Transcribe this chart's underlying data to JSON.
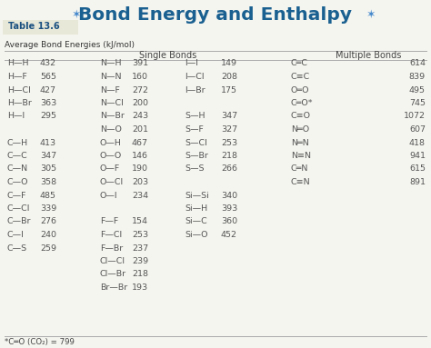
{
  "title": "Bond Energy and Enthalpy",
  "table_label": "Table 13.6",
  "subtitle": "Average Bond Energies (kJ/mol)",
  "single_bonds_header": "Single Bonds",
  "multiple_bonds_header": "Multiple Bonds",
  "footnote": "*C═O (CO₂) = 799",
  "col1": [
    [
      "H—H",
      "432"
    ],
    [
      "H—F",
      "565"
    ],
    [
      "H—Cl",
      "427"
    ],
    [
      "H—Br",
      "363"
    ],
    [
      "H—I",
      "295"
    ],
    [
      "",
      ""
    ],
    [
      "C—H",
      "413"
    ],
    [
      "C—C",
      "347"
    ],
    [
      "C—N",
      "305"
    ],
    [
      "C—O",
      "358"
    ],
    [
      "C—F",
      "485"
    ],
    [
      "C—Cl",
      "339"
    ],
    [
      "C—Br",
      "276"
    ],
    [
      "C—I",
      "240"
    ],
    [
      "C—S",
      "259"
    ]
  ],
  "col2": [
    [
      "N—H",
      "391"
    ],
    [
      "N—N",
      "160"
    ],
    [
      "N—F",
      "272"
    ],
    [
      "N—Cl",
      "200"
    ],
    [
      "N—Br",
      "243"
    ],
    [
      "N—O",
      "201"
    ],
    [
      "O—H",
      "467"
    ],
    [
      "O—O",
      "146"
    ],
    [
      "O—F",
      "190"
    ],
    [
      "O—Cl",
      "203"
    ],
    [
      "O—I",
      "234"
    ],
    [
      "",
      ""
    ],
    [
      "F—F",
      "154"
    ],
    [
      "F—Cl",
      "253"
    ],
    [
      "F—Br",
      "237"
    ],
    [
      "Cl—Cl",
      "239"
    ],
    [
      "Cl—Br",
      "218"
    ],
    [
      "Br—Br",
      "193"
    ]
  ],
  "col3": [
    [
      "I—I",
      "149"
    ],
    [
      "I—Cl",
      "208"
    ],
    [
      "I—Br",
      "175"
    ],
    [
      "",
      ""
    ],
    [
      "S—H",
      "347"
    ],
    [
      "S—F",
      "327"
    ],
    [
      "S—Cl",
      "253"
    ],
    [
      "S—Br",
      "218"
    ],
    [
      "S—S",
      "266"
    ],
    [
      "",
      ""
    ],
    [
      "Si—Si",
      "340"
    ],
    [
      "Si—H",
      "393"
    ],
    [
      "Si—C",
      "360"
    ],
    [
      "Si—O",
      "452"
    ]
  ],
  "col4": [
    [
      "C═C",
      "614"
    ],
    [
      "C≡C",
      "839"
    ],
    [
      "O═O",
      "495"
    ],
    [
      "C═O*",
      "745"
    ],
    [
      "C≡O",
      "1072"
    ],
    [
      "N═O",
      "607"
    ],
    [
      "N═N",
      "418"
    ],
    [
      "N≡N",
      "941"
    ],
    [
      "C═N",
      "615"
    ],
    [
      "C≡N",
      "891"
    ]
  ],
  "bg_color": "#f5f5f0",
  "table_label_bg": "#e8e8d8",
  "title_color": "#1a6090",
  "table_label_color": "#1a5080",
  "header_text_color": "#444444",
  "bond_color": "#555555",
  "number_color": "#555555",
  "line_color": "#aaaaaa",
  "star_color": "#4488cc",
  "footnote_color": "#444444",
  "subtitle_color": "#333333"
}
